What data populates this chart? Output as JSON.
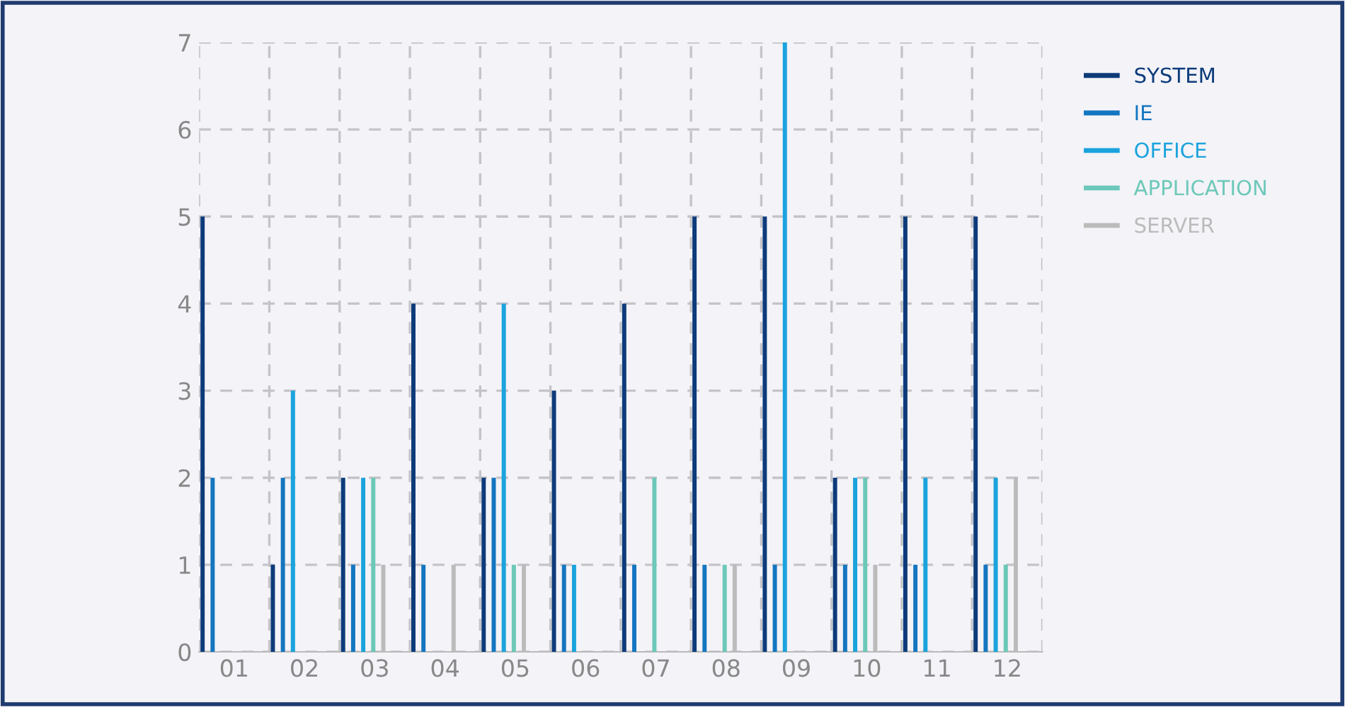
{
  "chart_data": {
    "type": "bar",
    "categories": [
      "01",
      "02",
      "03",
      "04",
      "05",
      "06",
      "07",
      "08",
      "09",
      "10",
      "11",
      "12"
    ],
    "series": [
      {
        "name": "SYSTEM",
        "color": "#0d3b7a",
        "values": [
          5,
          1,
          2,
          4,
          2,
          3,
          4,
          5,
          5,
          2,
          5,
          5
        ]
      },
      {
        "name": "IE",
        "color": "#1476c0",
        "values": [
          2,
          2,
          1,
          1,
          2,
          1,
          1,
          1,
          1,
          1,
          1,
          1
        ]
      },
      {
        "name": "OFFICE",
        "color": "#1aa3dc",
        "values": [
          0,
          3,
          2,
          0,
          4,
          1,
          0,
          0,
          7,
          2,
          2,
          2
        ]
      },
      {
        "name": "APPLICATION",
        "color": "#6cc8b8",
        "values": [
          0,
          0,
          2,
          0,
          1,
          0,
          2,
          1,
          0,
          2,
          0,
          1
        ]
      },
      {
        "name": "SERVER",
        "color": "#bbbbbb",
        "values": [
          0,
          0,
          1,
          1,
          1,
          0,
          0,
          1,
          0,
          1,
          0,
          2
        ]
      }
    ],
    "ylim": [
      0,
      7
    ],
    "yticks": [
      0,
      1,
      2,
      3,
      4,
      5,
      6,
      7
    ],
    "grid": true,
    "legend": "top right"
  }
}
